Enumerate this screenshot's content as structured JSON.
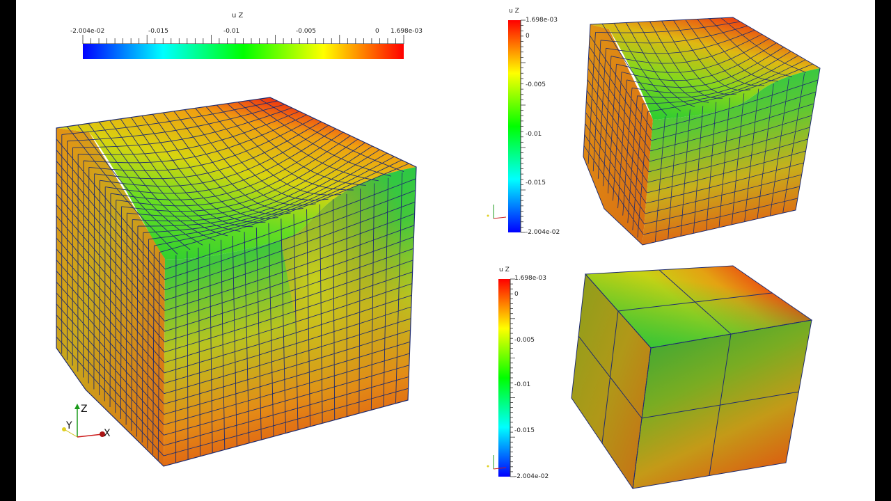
{
  "main_view": {
    "colorbar": {
      "title": "u Z",
      "min_label": "-2.004e-02",
      "max_label": "1.698e-03",
      "ticks": [
        "-0.015",
        "-0.01",
        "-0.005",
        "0"
      ]
    },
    "orientation_axes": {
      "x": "X",
      "y": "Y",
      "z": "Z"
    }
  },
  "top_right_view": {
    "colorbar": {
      "title": "u Z",
      "max_label": "1.698e-03",
      "min_label": "-2.004e-02",
      "ticks": [
        "0",
        "-0.005",
        "-0.01",
        "-0.015"
      ]
    }
  },
  "bottom_right_view": {
    "colorbar": {
      "title": "u Z",
      "max_label": "1.698e-03",
      "min_label": "-2.004e-02",
      "ticks": [
        "0",
        "-0.005",
        "-0.01",
        "-0.015"
      ]
    }
  },
  "colors": {
    "background": "#ffffff",
    "border": "#000000",
    "grid_lines": "#1a2a6c",
    "colormap": [
      "#0000ff",
      "#00ffff",
      "#00ff00",
      "#ffff00",
      "#ff0000"
    ]
  }
}
